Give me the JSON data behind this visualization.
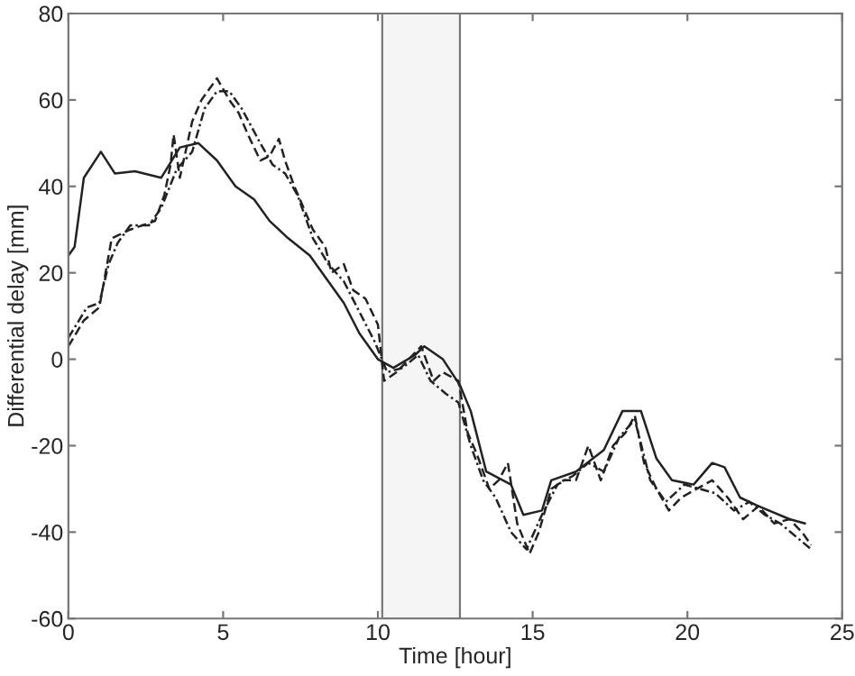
{
  "chart_data": {
    "type": "line",
    "xlabel": "Time [hour]",
    "ylabel": "Differential delay [mm]",
    "xlim": [
      0,
      25
    ],
    "ylim": [
      -60,
      80
    ],
    "xticks": [
      0,
      5,
      10,
      15,
      20,
      25
    ],
    "yticks": [
      -60,
      -40,
      -20,
      0,
      20,
      40,
      60,
      80
    ],
    "grid": false,
    "legend": false,
    "bands": [
      {
        "axis": "x",
        "from": 10.14,
        "to": 12.65,
        "color": "#f5f5f5"
      }
    ],
    "series": [
      {
        "color": "#222222",
        "line_style": "solid",
        "x": [
          0,
          0.2,
          0.5,
          1.05,
          1.5,
          2.15,
          3,
          3.6,
          4.2,
          4.8,
          5.4,
          6,
          6.5,
          7.1,
          7.8,
          8.9,
          9.4,
          10,
          10.5,
          11.2,
          11.5,
          12.1,
          12.65,
          13,
          13.5,
          14.3,
          14.7,
          15.3,
          15.6,
          16.4,
          17.3,
          17.9,
          18.5,
          19,
          19.5,
          20.2,
          20.8,
          21.2,
          21.7,
          22.3,
          23.3,
          23.8
        ],
        "values": [
          24,
          26,
          42,
          48,
          43,
          43.5,
          42,
          49,
          50,
          46,
          40,
          37,
          32,
          28,
          24,
          13,
          6,
          0,
          -2,
          1,
          3,
          0,
          -6,
          -12,
          -26,
          -29,
          -36,
          -35,
          -28,
          -26,
          -21,
          -12,
          -12,
          -23,
          -28,
          -29,
          -24,
          -25,
          -32,
          -34,
          -37,
          -38
        ]
      },
      {
        "color": "#222222",
        "line_style": "dashed",
        "x": [
          0,
          0.5,
          1,
          1.4,
          2,
          2.4,
          2.8,
          3.1,
          3.3,
          3.4,
          3.6,
          4,
          4.3,
          4.5,
          4.8,
          5.2,
          5.5,
          5.8,
          6.2,
          6.5,
          6.8,
          7,
          7.3,
          7.6,
          7.9,
          8.3,
          8.5,
          8.9,
          9.2,
          9.6,
          10,
          10.2,
          10.6,
          11,
          11.4,
          11.8,
          12.1,
          12.6,
          12.9,
          13.2,
          13.6,
          13.9,
          14.2,
          14.5,
          14.9,
          15.2,
          15.6,
          16,
          16.4,
          16.8,
          17.2,
          17.6,
          18,
          18.3,
          18.6,
          19,
          19.4,
          19.8,
          20.3,
          20.8,
          21.3,
          21.8,
          22.3,
          22.8,
          23.3,
          23.7,
          24
        ],
        "values": [
          3,
          9,
          12,
          28,
          30,
          31,
          32,
          38,
          45,
          52,
          42,
          55,
          60,
          62,
          65,
          60,
          57,
          52,
          46,
          47,
          51,
          46,
          40,
          35,
          30,
          26,
          20,
          22,
          16,
          14,
          8,
          -5,
          -3,
          0,
          3,
          -5,
          -3,
          -5,
          -17,
          -22,
          -30,
          -28,
          -24,
          -38,
          -45,
          -40,
          -30,
          -28,
          -28,
          -20,
          -28,
          -20,
          -17,
          -13,
          -24,
          -30,
          -35,
          -32,
          -30,
          -28,
          -32,
          -37,
          -34,
          -38,
          -37,
          -40,
          -43
        ]
      },
      {
        "color": "#222222",
        "line_style": "dotted",
        "x": [
          0,
          0.6,
          1,
          1.3,
          1.6,
          2,
          2.6,
          3,
          3.5,
          4,
          4.4,
          4.8,
          5.2,
          5.6,
          6.2,
          6.6,
          7,
          7.4,
          7.9,
          8.4,
          8.9,
          9.4,
          9.9,
          10.3,
          10.8,
          11.3,
          11.7,
          12.2,
          12.6,
          13,
          13.4,
          13.8,
          14.3,
          14.8,
          15.3,
          15.8,
          16.3,
          16.8,
          17.3,
          17.8,
          18.3,
          18.8,
          19.3,
          19.9,
          20.4,
          20.9,
          21.5,
          22,
          22.5,
          23,
          23.5,
          24
        ],
        "values": [
          5,
          12,
          13,
          22,
          27,
          31,
          31,
          35,
          44,
          48,
          58,
          62,
          62,
          58,
          50,
          45,
          43,
          38,
          28,
          22,
          18,
          11,
          4,
          -3,
          -2,
          1,
          -5,
          -8,
          -10,
          -20,
          -28,
          -32,
          -40,
          -44,
          -36,
          -29,
          -27,
          -24,
          -26,
          -18,
          -14,
          -28,
          -33,
          -29,
          -30,
          -31,
          -35,
          -33,
          -36,
          -38,
          -41,
          -44
        ]
      }
    ]
  }
}
